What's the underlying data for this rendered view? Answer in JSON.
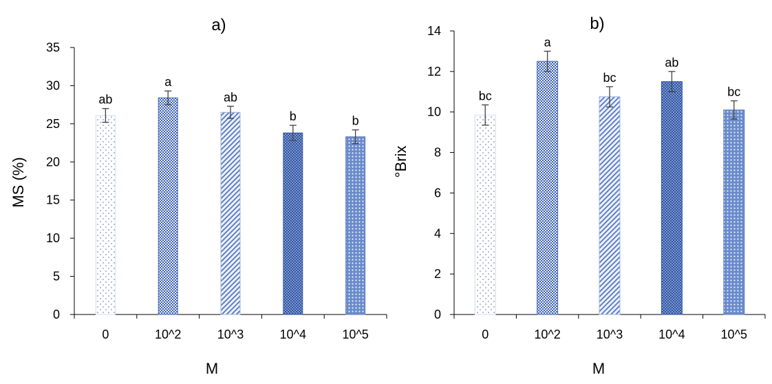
{
  "chart_data": [
    {
      "type": "bar",
      "title": "a)",
      "xlabel": "M",
      "ylabel": "MS (%)",
      "ylim": [
        0,
        35
      ],
      "yticks": [
        0,
        5,
        10,
        15,
        20,
        25,
        30,
        35
      ],
      "categories": [
        "0",
        "10^2",
        "10^3",
        "10^4",
        "10^5"
      ],
      "values": [
        26.1,
        28.4,
        26.5,
        23.8,
        23.3
      ],
      "errors": [
        0.9,
        0.9,
        0.8,
        1.0,
        0.9
      ],
      "labels": [
        "ab",
        "a",
        "ab",
        "b",
        "b"
      ],
      "grid": false
    },
    {
      "type": "bar",
      "title": "b)",
      "xlabel": "M",
      "ylabel": "°Brix",
      "ylim": [
        0,
        14
      ],
      "yticks": [
        0,
        2,
        4,
        6,
        8,
        10,
        12,
        14
      ],
      "categories": [
        "0",
        "10^2",
        "10^3",
        "10^4",
        "10^5"
      ],
      "values": [
        9.85,
        12.5,
        10.75,
        11.5,
        10.1
      ],
      "errors": [
        0.5,
        0.5,
        0.5,
        0.5,
        0.45
      ],
      "labels": [
        "bc",
        "a",
        "bc",
        "ab",
        "bc"
      ],
      "grid": false
    }
  ],
  "colors": {
    "axis": "#000000",
    "bar_fill_1": "#f7f9fc",
    "bar_fill_2": "#5b7fc4",
    "bar_fill_3": "#b3c6e6",
    "bar_fill_4": "#3f63b0",
    "bar_fill_5": "#6f8fcc",
    "error_bar": "#404040"
  }
}
